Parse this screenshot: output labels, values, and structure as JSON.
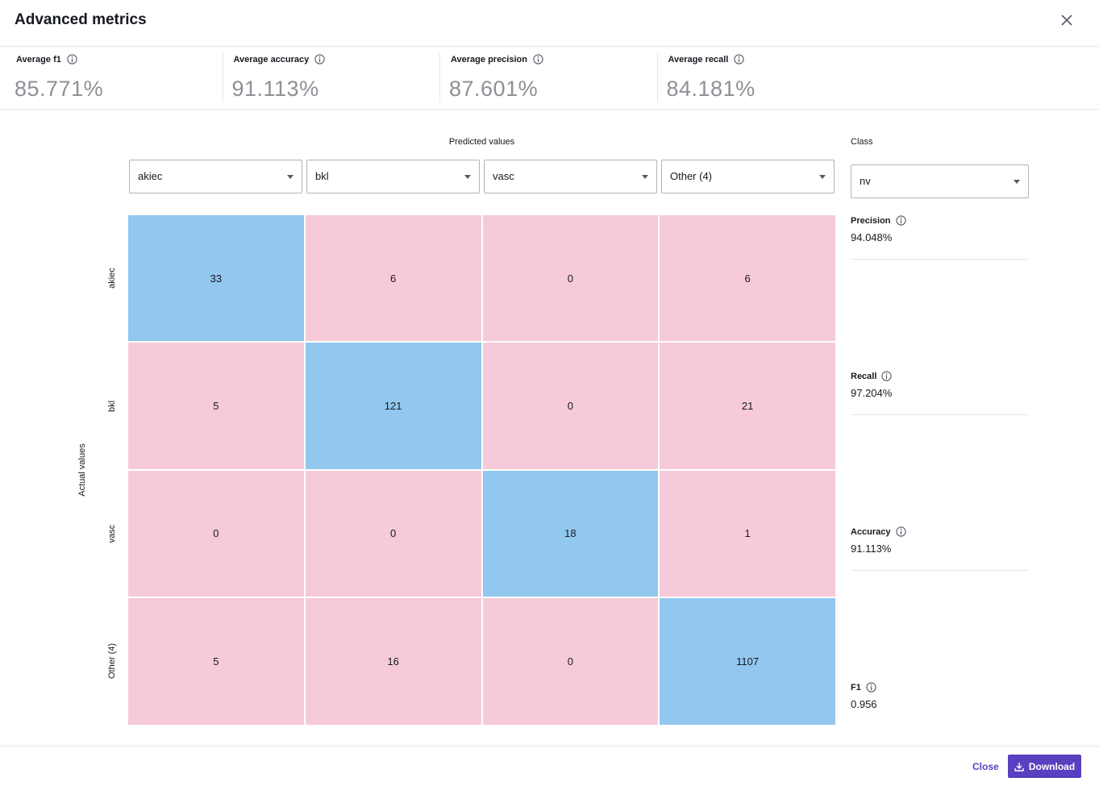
{
  "header": {
    "title": "Advanced metrics"
  },
  "summary": [
    {
      "label": "Average f1",
      "value": "85.771%"
    },
    {
      "label": "Average accuracy",
      "value": "91.113%"
    },
    {
      "label": "Average precision",
      "value": "87.601%"
    },
    {
      "label": "Average recall",
      "value": "84.181%"
    }
  ],
  "matrix": {
    "predicted_label": "Predicted values",
    "actual_label": "Actual values",
    "columns": [
      "akiec",
      "bkl",
      "vasc",
      "Other (4)"
    ],
    "rows": [
      "akiec",
      "bkl",
      "vasc",
      "Other (4)"
    ],
    "cells": [
      [
        33,
        6,
        0,
        6
      ],
      [
        5,
        121,
        0,
        21
      ],
      [
        0,
        0,
        18,
        1
      ],
      [
        5,
        16,
        0,
        1107
      ]
    ]
  },
  "class_panel": {
    "label": "Class",
    "selected": "nv",
    "metrics": [
      {
        "label": "Precision",
        "value": "94.048%"
      },
      {
        "label": "Recall",
        "value": "97.204%"
      },
      {
        "label": "Accuracy",
        "value": "91.113%"
      },
      {
        "label": "F1",
        "value": "0.956"
      }
    ]
  },
  "footer": {
    "close": "Close",
    "download": "Download"
  }
}
